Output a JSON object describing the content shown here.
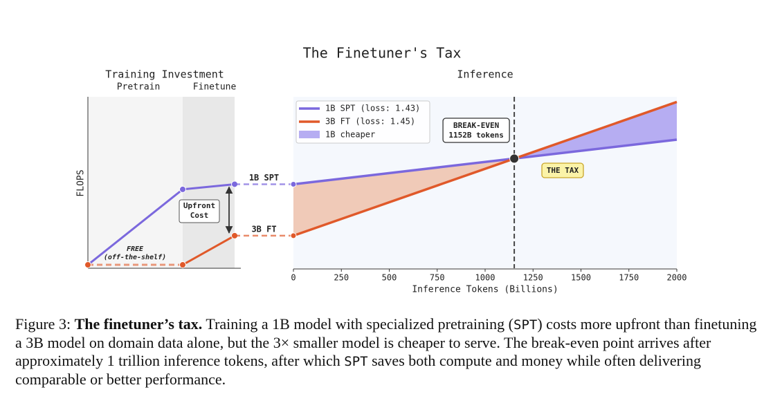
{
  "title": "The Finetuner's Tax",
  "chart_data": [
    {
      "type": "line",
      "title": "Training Investment",
      "stages": [
        "Pretrain",
        "Finetune"
      ],
      "stage_colors": [
        "#f5f5f5",
        "#e8e8e8"
      ],
      "ylabel": "FLOPS",
      "ylim": [
        0,
        100
      ],
      "series": [
        {
          "name": "1B SPT",
          "color": "#7b68dd",
          "values": [
            2,
            46,
            49
          ]
        },
        {
          "name": "3B FT",
          "color": "#e0592a",
          "values": [
            2,
            2,
            19
          ]
        }
      ],
      "free_label": [
        "FREE",
        "(off-the-shelf)"
      ],
      "gap_label": [
        "Upfront",
        "Cost"
      ]
    },
    {
      "type": "line",
      "title": "Inference",
      "xlabel": "Inference Tokens (Billions)",
      "x": [
        0,
        2000
      ],
      "xlim": [
        0,
        2000
      ],
      "xticks": [
        0,
        250,
        500,
        750,
        1000,
        1250,
        1500,
        1750,
        2000
      ],
      "ylim": [
        0,
        100
      ],
      "background": "#f5f8fd",
      "legend": "upper left",
      "series": [
        {
          "name": "1B SPT (loss: 1.43)",
          "color": "#7b68dd",
          "values": [
            49,
            75
          ]
        },
        {
          "name": "3B FT (loss: 1.45)",
          "color": "#e0592a",
          "values": [
            19,
            97
          ]
        }
      ],
      "fill": {
        "name": "1B cheaper",
        "color": "#b6adf2",
        "before_color": "#f0c4b0"
      },
      "break_even": {
        "x": 1152,
        "label": "BREAK-EVEN",
        "sublabel": "1152B tokens"
      },
      "tax_label": "THE TAX"
    }
  ],
  "caption": [
    {
      "text": "Figure 3: ",
      "style": "plain"
    },
    {
      "text": "The finetuner’s tax.",
      "style": "bold"
    },
    {
      "text": " Training a 1B model with specialized pretraining (",
      "style": "plain"
    },
    {
      "text": "SPT",
      "style": "mono"
    },
    {
      "text": ") costs more upfront than finetuning a 3B model on domain data alone, but the 3× smaller model is cheaper to serve. The break-even point arrives after approximately 1 trillion inference tokens, after which ",
      "style": "plain"
    },
    {
      "text": "SPT",
      "style": "mono"
    },
    {
      "text": " saves both compute and money while often delivering comparable or better performance.",
      "style": "plain"
    }
  ]
}
